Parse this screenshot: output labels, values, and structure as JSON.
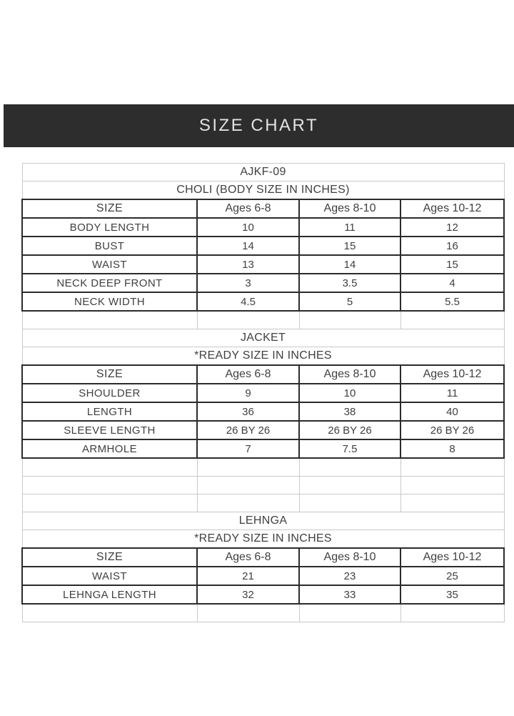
{
  "banner": {
    "title": "SIZE CHART"
  },
  "colors": {
    "banner_bg": "#2d2d2d",
    "banner_text": "#e2e2e2",
    "heavy_border": "#2b2b2b",
    "light_border": "#c9c9c9",
    "text": "#404040"
  },
  "chart_data": [
    {
      "type": "table",
      "title": "AJKF-09",
      "subtitle": "CHOLI (BODY SIZE IN INCHES)",
      "columns": [
        "SIZE",
        "Ages 6-8",
        "Ages 8-10",
        "Ages 10-12"
      ],
      "rows": [
        [
          "BODY LENGTH",
          "10",
          "11",
          "12"
        ],
        [
          "BUST",
          "14",
          "15",
          "16"
        ],
        [
          "WAIST",
          "13",
          "14",
          "15"
        ],
        [
          "NECK DEEP FRONT",
          "3",
          "3.5",
          "4"
        ],
        [
          "NECK WIDTH",
          "4.5",
          "5",
          "5.5"
        ]
      ],
      "empty_rows_after": 1
    },
    {
      "type": "table",
      "title": "JACKET",
      "subtitle": "*READY SIZE IN INCHES",
      "columns": [
        "SIZE",
        "Ages 6-8",
        "Ages 8-10",
        "Ages 10-12"
      ],
      "rows": [
        [
          "SHOULDER",
          "9",
          "10",
          "11"
        ],
        [
          "LENGTH",
          "36",
          "38",
          "40"
        ],
        [
          "SLEEVE LENGTH",
          "26 BY 26",
          "26 BY 26",
          "26 BY 26"
        ],
        [
          "ARMHOLE",
          "7",
          "7.5",
          "8"
        ]
      ],
      "empty_rows_after": 3
    },
    {
      "type": "table",
      "title": "LEHNGA",
      "subtitle": "*READY SIZE IN INCHES",
      "columns": [
        "SIZE",
        "Ages 6-8",
        "Ages 8-10",
        "Ages 10-12"
      ],
      "rows": [
        [
          "WAIST",
          "21",
          "23",
          "25"
        ],
        [
          "LEHNGA LENGTH",
          "32",
          "33",
          "35"
        ]
      ],
      "empty_rows_after": 1
    }
  ]
}
